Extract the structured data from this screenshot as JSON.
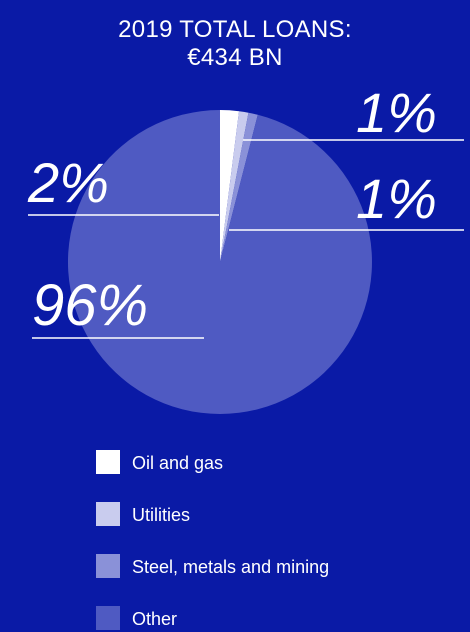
{
  "chart_data": {
    "type": "pie",
    "title": "2019 TOTAL LOANS:",
    "subtitle": "€434 BN",
    "categories": [
      "Oil and gas",
      "Utilities",
      "Steel, metals and mining",
      "Other"
    ],
    "values": [
      2,
      1,
      1,
      96
    ],
    "value_labels": [
      "2%",
      "1%",
      "1%",
      "96%"
    ],
    "colors": [
      "#ffffff",
      "#c9ccee",
      "#8a91d8",
      "#4f5ac2"
    ],
    "legend_position": "bottom",
    "background": "#0a1aa6"
  }
}
